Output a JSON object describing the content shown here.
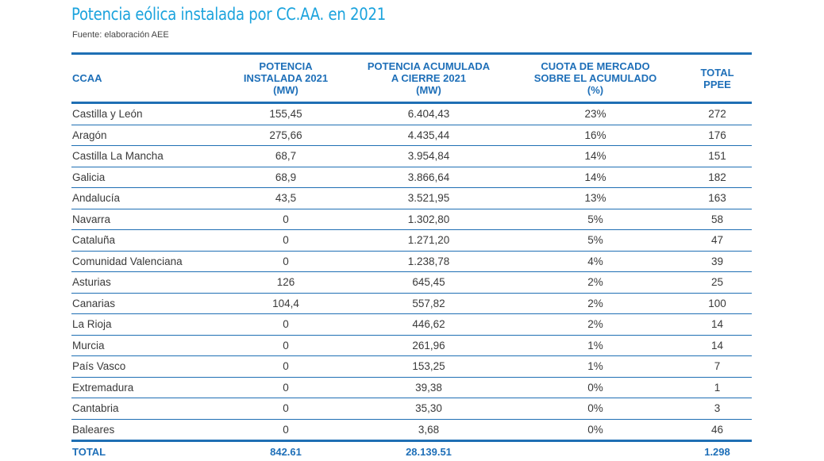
{
  "title": "Potencia eólica instalada por CC.AA. en 2021",
  "source": "Fuente: elaboración AEE",
  "headers": [
    [
      "CCAA"
    ],
    [
      "POTENCIA",
      "INSTALADA 2021",
      "(MW)"
    ],
    [
      "POTENCIA ACUMULADA",
      "A CIERRE 2021",
      "(MW)"
    ],
    [
      "CUOTA DE MERCADO",
      "SOBRE EL ACUMULADO",
      "(%)"
    ],
    [
      "TOTAL",
      "PPEE"
    ]
  ],
  "rows": [
    [
      "Castilla y León",
      "155,45",
      "6.404,43",
      "23%",
      "272"
    ],
    [
      "Aragón",
      "275,66",
      "4.435,44",
      "16%",
      "176"
    ],
    [
      "Castilla La Mancha",
      "68,7",
      "3.954,84",
      "14%",
      "151"
    ],
    [
      "Galicia",
      "68,9",
      "3.866,64",
      "14%",
      "182"
    ],
    [
      "Andalucía",
      "43,5",
      "3.521,95",
      "13%",
      "163"
    ],
    [
      "Navarra",
      "0",
      "1.302,80",
      "5%",
      "58"
    ],
    [
      "Cataluña",
      "0",
      "1.271,20",
      "5%",
      "47"
    ],
    [
      "Comunidad Valenciana",
      "0",
      "1.238,78",
      "4%",
      "39"
    ],
    [
      "Asturias",
      "126",
      "645,45",
      "2%",
      "25"
    ],
    [
      "Canarias",
      "104,4",
      "557,82",
      "2%",
      "100"
    ],
    [
      "La Rioja",
      "0",
      "446,62",
      "2%",
      "14"
    ],
    [
      "Murcia",
      "0",
      "261,96",
      "1%",
      "14"
    ],
    [
      "País Vasco",
      "0",
      "153,25",
      "1%",
      "7"
    ],
    [
      "Extremadura",
      "0",
      "39,38",
      "0%",
      "1"
    ],
    [
      "Cantabria",
      "0",
      "35,30",
      "0%",
      "3"
    ],
    [
      "Baleares",
      "0",
      "3,68",
      "0%",
      "46"
    ]
  ],
  "total": [
    "TOTAL",
    "842.61",
    "28.139.51",
    "",
    "1.298"
  ]
}
